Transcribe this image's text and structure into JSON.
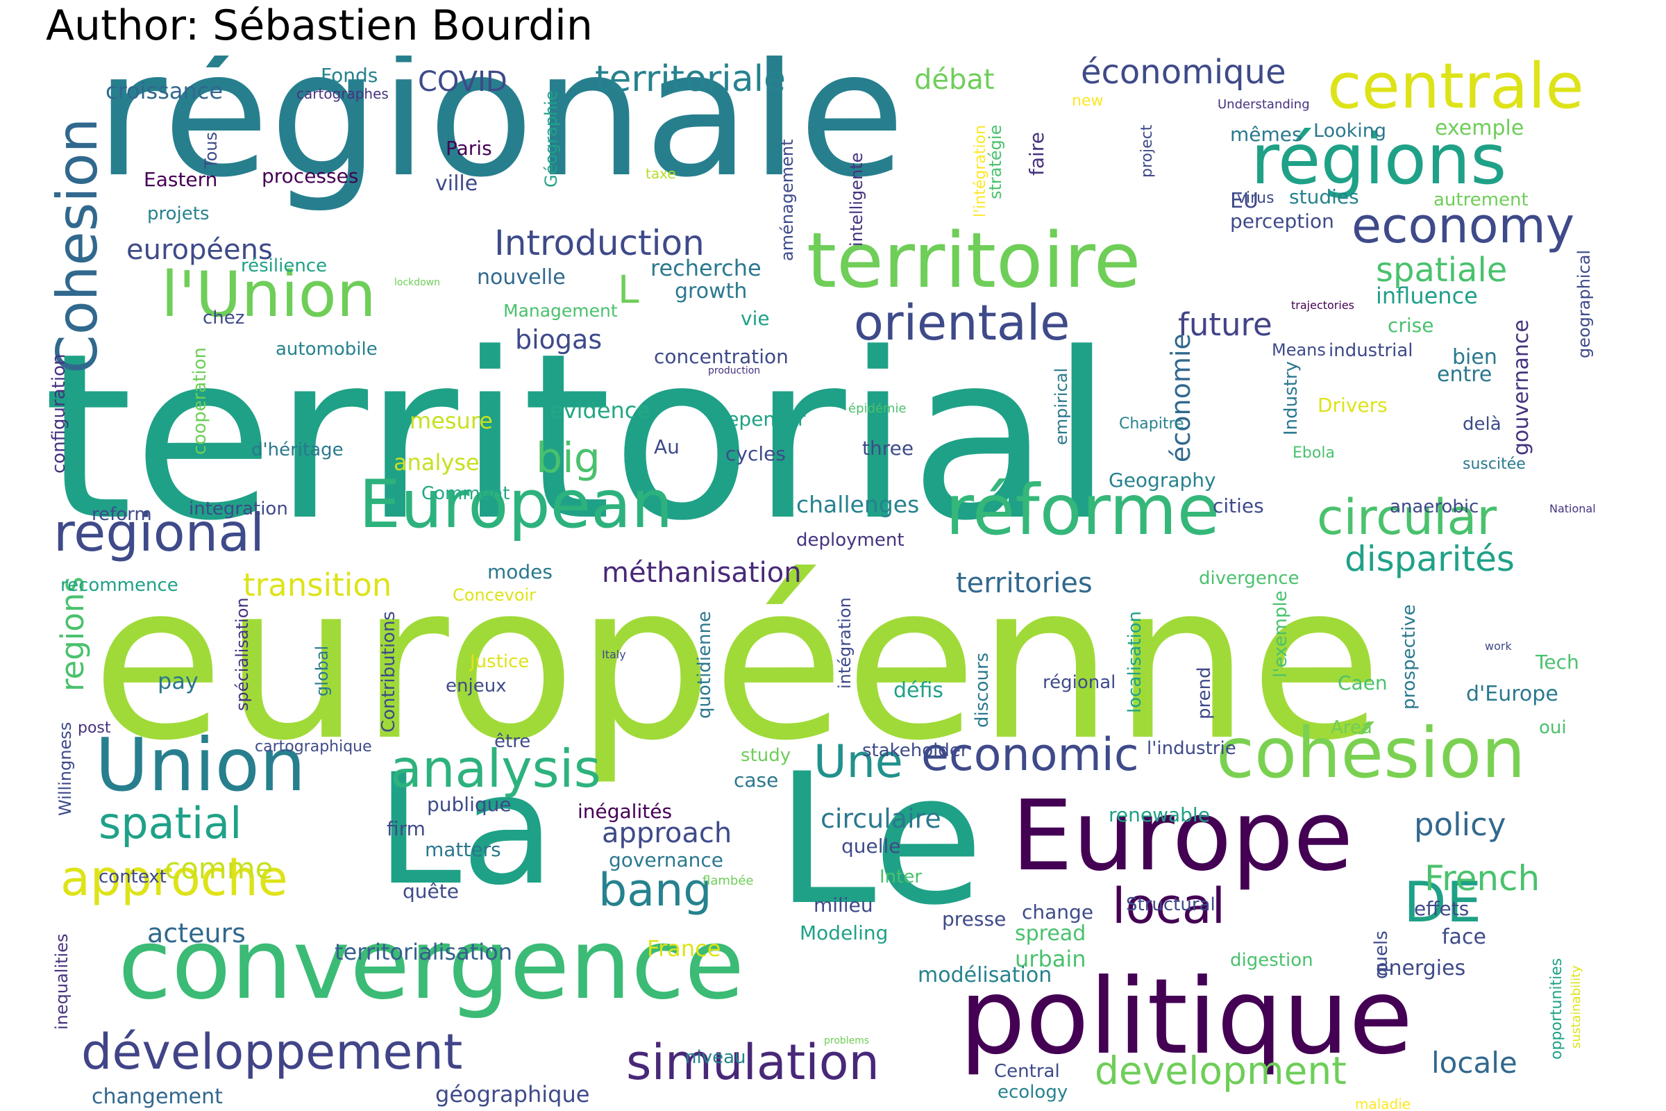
{
  "title": "Author: Sébastien Bourdin",
  "palette": [
    "#440154",
    "#46327e",
    "#365c8d",
    "#277f8e",
    "#1fa187",
    "#4ac16d",
    "#a0da39",
    "#fde725"
  ],
  "words": [
    {
      "text": "territorial",
      "color": "#1fa187"
    },
    {
      "text": "européenne",
      "color": "#a0da39"
    },
    {
      "text": "régionale",
      "color": "#277f8e"
    },
    {
      "text": "La",
      "color": "#1fa187"
    },
    {
      "text": "Le",
      "color": "#1fa187"
    },
    {
      "text": "convergence",
      "color": "#3bbb75"
    },
    {
      "text": "politique",
      "color": "#440154"
    },
    {
      "text": "Europe",
      "color": "#440154"
    },
    {
      "text": "territoire",
      "color": "#6ece58"
    },
    {
      "text": "European",
      "color": "#2db27d"
    },
    {
      "text": "réforme",
      "color": "#35b779"
    },
    {
      "text": "Union",
      "color": "#277f8e"
    },
    {
      "text": "cohésion",
      "color": "#7ad151"
    },
    {
      "text": "régions",
      "color": "#1fa187"
    },
    {
      "text": "centrale",
      "color": "#dde318"
    },
    {
      "text": "l'Union",
      "color": "#6ece58"
    },
    {
      "text": "Cohesion",
      "color": "#31688e"
    },
    {
      "text": "economy",
      "color": "#3e4a89"
    },
    {
      "text": "orientale",
      "color": "#3e4a89"
    },
    {
      "text": "regional",
      "color": "#3e4a89"
    },
    {
      "text": "circular",
      "color": "#4ac16d"
    },
    {
      "text": "analysis",
      "color": "#2db27d"
    },
    {
      "text": "approche",
      "color": "#dde318"
    },
    {
      "text": "développement",
      "color": "#414487"
    },
    {
      "text": "simulation",
      "color": "#482878"
    },
    {
      "text": "DE",
      "color": "#1fa187"
    },
    {
      "text": "local",
      "color": "#440154"
    },
    {
      "text": "spatial",
      "color": "#1fa187"
    },
    {
      "text": "economic",
      "color": "#3e4a89"
    },
    {
      "text": "Une",
      "color": "#21918c"
    },
    {
      "text": "bang",
      "color": "#26828e"
    },
    {
      "text": "development",
      "color": "#6ece58"
    },
    {
      "text": "big",
      "color": "#4ac16d"
    },
    {
      "text": "territoriale",
      "color": "#26828e"
    },
    {
      "text": "économique",
      "color": "#3e4a89"
    },
    {
      "text": "future",
      "color": "#414487"
    },
    {
      "text": "disparités",
      "color": "#1fa187"
    },
    {
      "text": "territories",
      "color": "#31688e"
    },
    {
      "text": "méthanisation",
      "color": "#482878"
    },
    {
      "text": "spatiale",
      "color": "#4ac16d"
    },
    {
      "text": "policy",
      "color": "#31688e"
    },
    {
      "text": "French",
      "color": "#4ac16d"
    },
    {
      "text": "locale",
      "color": "#31688e"
    },
    {
      "text": "regions",
      "color": "#4ac16d"
    },
    {
      "text": "approach",
      "color": "#3e4a89"
    },
    {
      "text": "circulaire",
      "color": "#2a788e"
    },
    {
      "text": "transition",
      "color": "#dde318"
    },
    {
      "text": "Introduction",
      "color": "#3e4a89"
    },
    {
      "text": "européens",
      "color": "#3e4a89"
    },
    {
      "text": "acteurs",
      "color": "#31688e"
    },
    {
      "text": "comme",
      "color": "#c8e020"
    },
    {
      "text": "territorialisation",
      "color": "#355f8d"
    },
    {
      "text": "changement",
      "color": "#31688e"
    },
    {
      "text": "géographique",
      "color": "#3e4a89"
    },
    {
      "text": "biogas",
      "color": "#3e4a89"
    },
    {
      "text": "économie",
      "color": "#31688e"
    },
    {
      "text": "COVID",
      "color": "#3e4a89"
    },
    {
      "text": "débat",
      "color": "#6ece58"
    },
    {
      "text": "croissance",
      "color": "#31688e"
    },
    {
      "text": "L",
      "color": "#6ece58"
    },
    {
      "text": "recherche",
      "color": "#2a788e"
    },
    {
      "text": "growth",
      "color": "#2a788e"
    },
    {
      "text": "nouvelle",
      "color": "#31688e"
    },
    {
      "text": "ville",
      "color": "#3e4a89"
    },
    {
      "text": "challenges",
      "color": "#26828e"
    },
    {
      "text": "analyse",
      "color": "#c8e020"
    },
    {
      "text": "mesure",
      "color": "#c8e020"
    },
    {
      "text": "evidence",
      "color": "#22a884"
    },
    {
      "text": "influence",
      "color": "#1f9e89"
    },
    {
      "text": "gouvernance",
      "color": "#46327e"
    },
    {
      "text": "entre",
      "color": "#2a788e"
    },
    {
      "text": "bien",
      "color": "#2a788e"
    },
    {
      "text": "crise",
      "color": "#4ac16d"
    },
    {
      "text": "perception",
      "color": "#3e4a89"
    },
    {
      "text": "studies",
      "color": "#26828e"
    },
    {
      "text": "EU",
      "color": "#3e4a89"
    },
    {
      "text": "Looking",
      "color": "#2a788e"
    },
    {
      "text": "mêmes",
      "color": "#2a788e"
    },
    {
      "text": "exemple",
      "color": "#6ece58"
    },
    {
      "text": "autrement",
      "color": "#6ece58"
    },
    {
      "text": "virus",
      "color": "#3e4a89"
    },
    {
      "text": "faire",
      "color": "#46327e"
    },
    {
      "text": "stratégie",
      "color": "#4ac16d"
    },
    {
      "text": "l'intégration",
      "color": "#fde725"
    },
    {
      "text": "project",
      "color": "#3e4a89"
    },
    {
      "text": "new",
      "color": "#fde725"
    },
    {
      "text": "intelligente",
      "color": "#46327e"
    },
    {
      "text": "aménagement",
      "color": "#3e4a89"
    },
    {
      "text": "Géographie",
      "color": "#1fa187"
    },
    {
      "text": "Paris",
      "color": "#440154"
    },
    {
      "text": "Fonds",
      "color": "#26828e"
    },
    {
      "text": "cartographes",
      "color": "#46327e"
    },
    {
      "text": "Tous",
      "color": "#3e4a89"
    },
    {
      "text": "Eastern",
      "color": "#440154"
    },
    {
      "text": "processes",
      "color": "#440154"
    },
    {
      "text": "taxe",
      "color": "#b5de2b"
    },
    {
      "text": "projets",
      "color": "#26828e"
    },
    {
      "text": "résilience",
      "color": "#1fa187"
    },
    {
      "text": "lockdown",
      "color": "#6ece58"
    },
    {
      "text": "chez",
      "color": "#3e4a89"
    },
    {
      "text": "Management",
      "color": "#4ac16d"
    },
    {
      "text": "vie",
      "color": "#1fa187"
    },
    {
      "text": "automobile",
      "color": "#26828e"
    },
    {
      "text": "concentration",
      "color": "#3e4a89"
    },
    {
      "text": "production",
      "color": "#46327e"
    },
    {
      "text": "cooperation",
      "color": "#6ece58"
    },
    {
      "text": "configuration",
      "color": "#46327e"
    },
    {
      "text": "d'héritage",
      "color": "#2a788e"
    },
    {
      "text": "Au",
      "color": "#3e4a89"
    },
    {
      "text": "Repenser",
      "color": "#1fa187"
    },
    {
      "text": "cycles",
      "color": "#3e4a89"
    },
    {
      "text": "three",
      "color": "#3e4a89"
    },
    {
      "text": "épidémie",
      "color": "#4ac16d"
    },
    {
      "text": "empirical",
      "color": "#2a788e"
    },
    {
      "text": "Chapitre",
      "color": "#26828e"
    },
    {
      "text": "Industry",
      "color": "#2a788e"
    },
    {
      "text": "Means",
      "color": "#3e4a89"
    },
    {
      "text": "industrial",
      "color": "#3e4a89"
    },
    {
      "text": "Drivers",
      "color": "#dde318"
    },
    {
      "text": "delà",
      "color": "#3e4a89"
    },
    {
      "text": "geographical",
      "color": "#3e4a89"
    },
    {
      "text": "trajectories",
      "color": "#440154"
    },
    {
      "text": "Understanding",
      "color": "#46327e"
    },
    {
      "text": "Ebola",
      "color": "#4ac16d"
    },
    {
      "text": "suscitée",
      "color": "#2a788e"
    },
    {
      "text": "National",
      "color": "#46327e"
    },
    {
      "text": "Geography",
      "color": "#26828e"
    },
    {
      "text": "cities",
      "color": "#3e4a89"
    },
    {
      "text": "anaerobic",
      "color": "#3e4a89"
    },
    {
      "text": "Comment",
      "color": "#22a884"
    },
    {
      "text": "integration",
      "color": "#3e4a89"
    },
    {
      "text": "reform",
      "color": "#3e4a89"
    },
    {
      "text": "deployment",
      "color": "#46327e"
    },
    {
      "text": "modes",
      "color": "#2a788e"
    },
    {
      "text": "Concevoir",
      "color": "#dde318"
    },
    {
      "text": "divergence",
      "color": "#4ac16d"
    },
    {
      "text": "recommence",
      "color": "#1fa187"
    },
    {
      "text": "spécialisation",
      "color": "#46327e"
    },
    {
      "text": "Contributions",
      "color": "#3e4a89"
    },
    {
      "text": "global",
      "color": "#2a788e"
    },
    {
      "text": "Justice",
      "color": "#dde318"
    },
    {
      "text": "enjeux",
      "color": "#3e4a89"
    },
    {
      "text": "Italy",
      "color": "#3e4a89"
    },
    {
      "text": "pay",
      "color": "#2a788e"
    },
    {
      "text": "quotidienne",
      "color": "#2a788e"
    },
    {
      "text": "intégration",
      "color": "#3e4a89"
    },
    {
      "text": "défis",
      "color": "#1fa187"
    },
    {
      "text": "discours",
      "color": "#2a788e"
    },
    {
      "text": "régional",
      "color": "#3e4a89"
    },
    {
      "text": "localisation",
      "color": "#1fa187"
    },
    {
      "text": "prend",
      "color": "#3e4a89"
    },
    {
      "text": "l'exemple",
      "color": "#4ac16d"
    },
    {
      "text": "Caen",
      "color": "#4ac16d"
    },
    {
      "text": "prospective",
      "color": "#2a788e"
    },
    {
      "text": "work",
      "color": "#3e4a89"
    },
    {
      "text": "Tech",
      "color": "#4ac16d"
    },
    {
      "text": "d'Europe",
      "color": "#2a788e"
    },
    {
      "text": "oui",
      "color": "#4ac16d"
    },
    {
      "text": "Area",
      "color": "#6ece58"
    },
    {
      "text": "l'industrie",
      "color": "#3e4a89"
    },
    {
      "text": "post",
      "color": "#46327e"
    },
    {
      "text": "cartographique",
      "color": "#3e4a89"
    },
    {
      "text": "Willingness",
      "color": "#3e4a89"
    },
    {
      "text": "être",
      "color": "#3e4a89"
    },
    {
      "text": "study",
      "color": "#6ece58"
    },
    {
      "text": "case",
      "color": "#2a788e"
    },
    {
      "text": "stakeholder",
      "color": "#3e4a89"
    },
    {
      "text": "publique",
      "color": "#3e4a89"
    },
    {
      "text": "inégalités",
      "color": "#440154"
    },
    {
      "text": "renewable",
      "color": "#1fa187"
    },
    {
      "text": "firm",
      "color": "#3e4a89"
    },
    {
      "text": "matters",
      "color": "#2a788e"
    },
    {
      "text": "governance",
      "color": "#2a788e"
    },
    {
      "text": "quelle",
      "color": "#3e4a89"
    },
    {
      "text": "context",
      "color": "#3e4a89"
    },
    {
      "text": "flambée",
      "color": "#6ece58"
    },
    {
      "text": "Inter",
      "color": "#4ac16d"
    },
    {
      "text": "quête",
      "color": "#3e4a89"
    },
    {
      "text": "milieu",
      "color": "#3e4a89"
    },
    {
      "text": "presse",
      "color": "#3e4a89"
    },
    {
      "text": "change",
      "color": "#3e4a89"
    },
    {
      "text": "Structural",
      "color": "#3e4a89"
    },
    {
      "text": "effets",
      "color": "#3e4a89"
    },
    {
      "text": "Modeling",
      "color": "#1fa187"
    },
    {
      "text": "spread",
      "color": "#4ac16d"
    },
    {
      "text": "quels",
      "color": "#3e4a89"
    },
    {
      "text": "face",
      "color": "#3e4a89"
    },
    {
      "text": "France",
      "color": "#dde318"
    },
    {
      "text": "urbain",
      "color": "#4ac16d"
    },
    {
      "text": "digestion",
      "color": "#4ac16d"
    },
    {
      "text": "energies",
      "color": "#3e4a89"
    },
    {
      "text": "inequalities",
      "color": "#46327e"
    },
    {
      "text": "modélisation",
      "color": "#26828e"
    },
    {
      "text": "opportunities",
      "color": "#1fa187"
    },
    {
      "text": "sustainability",
      "color": "#dde318"
    },
    {
      "text": "problems",
      "color": "#6ece58"
    },
    {
      "text": "niveau",
      "color": "#26828e"
    },
    {
      "text": "Central",
      "color": "#3e4a89"
    },
    {
      "text": "ecology",
      "color": "#26828e"
    },
    {
      "text": "maladie",
      "color": "#fde725"
    }
  ]
}
